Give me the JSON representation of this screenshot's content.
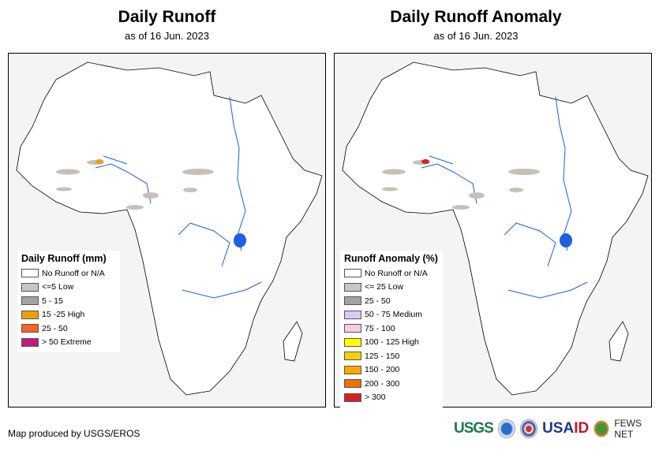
{
  "left": {
    "title": "Daily Runoff",
    "subtitle": "as of 16 Jun. 2023",
    "legend": {
      "title": "Daily Runoff (mm)",
      "items": [
        {
          "label": "No Runoff or N/A",
          "color": "#ffffff"
        },
        {
          "label": "<=5 Low",
          "color": "#cdc5bb"
        },
        {
          "label": "5 - 15",
          "color": "#a3a3a6"
        },
        {
          "label": "15 -25 High",
          "color": "#e8a30c"
        },
        {
          "label": "25 - 50",
          "color": "#fa6324"
        },
        {
          "label": "> 50 Extreme",
          "color": "#c11c7d"
        }
      ]
    }
  },
  "right": {
    "title": "Daily Runoff Anomaly",
    "subtitle": "as of 16 Jun. 2023",
    "legend": {
      "title": "Runoff Anomaly (%)",
      "items": [
        {
          "label": "No Runoff or N/A",
          "color": "#ffffff"
        },
        {
          "label": "<= 25 Low",
          "color": "#cdc5bb"
        },
        {
          "label": "25 - 50",
          "color": "#a3a3a6"
        },
        {
          "label": "50 - 75 Medium",
          "color": "#dcc8f8"
        },
        {
          "label": "75 - 100",
          "color": "#fcc8e4"
        },
        {
          "label": "100 - 125 High",
          "color": "#ffff00"
        },
        {
          "label": "125 - 150",
          "color": "#f8d000"
        },
        {
          "label": "150 - 200",
          "color": "#f8a800"
        },
        {
          "label": "200 - 300",
          "color": "#f07000"
        },
        {
          "label": "> 300",
          "color": "#d82020"
        }
      ]
    }
  },
  "footer": {
    "credit": "Map produced by USGS/EROS"
  },
  "logos": {
    "usgs": "USGS",
    "usaid_a": "USA",
    "usaid_b": "ID",
    "fews": "FEWS NET"
  }
}
